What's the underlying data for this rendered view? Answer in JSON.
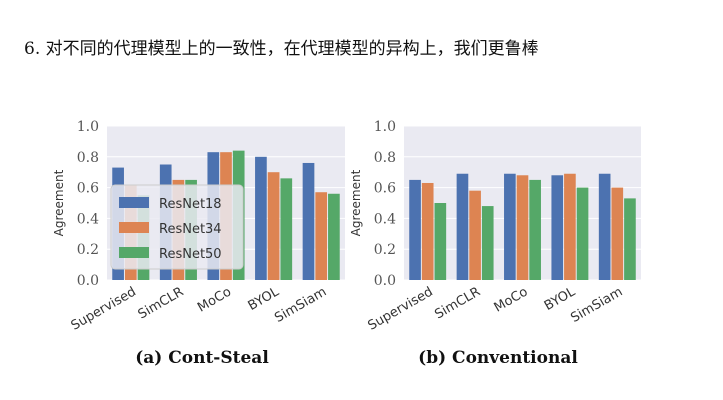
{
  "heading": "6. 对不同的代理模型上的一致性，在代理模型的异构上，我们更鲁棒",
  "chart_data": [
    {
      "type": "bar",
      "title": "(a) Cont-Steal",
      "ylabel": "Agreement",
      "ylim": [
        0,
        1.0
      ],
      "yticks": [
        "0.0",
        "0.2",
        "0.4",
        "0.6",
        "0.8",
        "1.0"
      ],
      "categories": [
        "Supervised",
        "SimCLR",
        "MoCo",
        "BYOL",
        "SimSiam"
      ],
      "series": [
        {
          "name": "ResNet18",
          "color": "#4c72b0",
          "values": [
            0.73,
            0.75,
            0.83,
            0.8,
            0.76
          ]
        },
        {
          "name": "ResNet34",
          "color": "#dd8452",
          "values": [
            0.62,
            0.65,
            0.83,
            0.7,
            0.57
          ]
        },
        {
          "name": "ResNet50",
          "color": "#55a868",
          "values": [
            0.55,
            0.65,
            0.84,
            0.66,
            0.56
          ]
        }
      ],
      "legend_position": "lower-left",
      "grid": true
    },
    {
      "type": "bar",
      "title": "(b) Conventional",
      "ylabel": "Agreement",
      "ylim": [
        0,
        1.0
      ],
      "yticks": [
        "0.0",
        "0.2",
        "0.4",
        "0.6",
        "0.8",
        "1.0"
      ],
      "categories": [
        "Supervised",
        "SimCLR",
        "MoCo",
        "BYOL",
        "SimSiam"
      ],
      "series": [
        {
          "name": "ResNet18",
          "color": "#4c72b0",
          "values": [
            0.65,
            0.69,
            0.69,
            0.68,
            0.69
          ]
        },
        {
          "name": "ResNet34",
          "color": "#dd8452",
          "values": [
            0.63,
            0.58,
            0.68,
            0.69,
            0.6
          ]
        },
        {
          "name": "ResNet50",
          "color": "#55a868",
          "values": [
            0.5,
            0.48,
            0.65,
            0.6,
            0.53
          ]
        }
      ],
      "grid": true
    }
  ]
}
